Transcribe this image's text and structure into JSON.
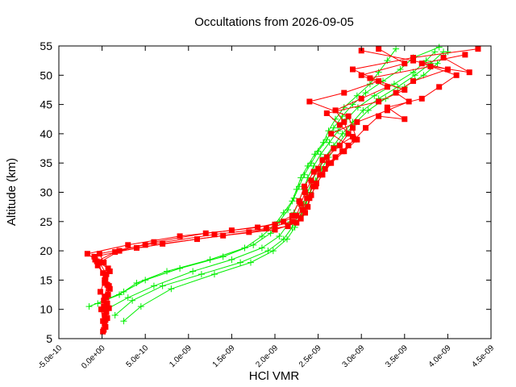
{
  "chart_data": {
    "type": "scatter",
    "title": "Occultations from 2026-09-05",
    "xlabel": "HCl VMR",
    "ylabel": "Altitude (km)",
    "xlim": [
      -5e-10,
      4.5e-09
    ],
    "ylim": [
      5,
      55
    ],
    "xticks": [
      {
        "value": -5e-10,
        "label": "-5.0e-10"
      },
      {
        "value": 0,
        "label": "0.0e+00"
      },
      {
        "value": 5e-10,
        "label": "5.0e-10"
      },
      {
        "value": 1e-09,
        "label": "1.0e-09"
      },
      {
        "value": 1.5e-09,
        "label": "1.5e-09"
      },
      {
        "value": 2e-09,
        "label": "2.0e-09"
      },
      {
        "value": 2.5e-09,
        "label": "2.5e-09"
      },
      {
        "value": 3e-09,
        "label": "3.0e-09"
      },
      {
        "value": 3.5e-09,
        "label": "3.5e-09"
      },
      {
        "value": 4e-09,
        "label": "4.0e-09"
      },
      {
        "value": 4.5e-09,
        "label": "4.5e-09"
      }
    ],
    "yticks": [
      {
        "value": 5,
        "label": "5"
      },
      {
        "value": 10,
        "label": "10"
      },
      {
        "value": 15,
        "label": "15"
      },
      {
        "value": 20,
        "label": "20"
      },
      {
        "value": 25,
        "label": "25"
      },
      {
        "value": 30,
        "label": "30"
      },
      {
        "value": 35,
        "label": "35"
      },
      {
        "value": 40,
        "label": "40"
      },
      {
        "value": 45,
        "label": "45"
      },
      {
        "value": 50,
        "label": "50"
      },
      {
        "value": 55,
        "label": "55"
      }
    ],
    "grid": false,
    "legend": "none",
    "series": [
      {
        "color": "#00ee00",
        "marker": "plus",
        "profiles": [
          [
            [
              -1.5e-10,
              10.5
            ],
            [
              2e-10,
              12.5
            ],
            [
              4e-10,
              14.5
            ],
            [
              7.5e-10,
              16.5
            ],
            [
              1.25e-09,
              18.5
            ],
            [
              1.65e-09,
              20.5
            ],
            [
              1.85e-09,
              22.5
            ],
            [
              2e-09,
              24.5
            ],
            [
              2.1e-09,
              26.5
            ],
            [
              2.2e-09,
              28.5
            ],
            [
              2.25e-09,
              30.5
            ],
            [
              2.3e-09,
              32.5
            ],
            [
              2.38e-09,
              34.5
            ],
            [
              2.46e-09,
              36.5
            ],
            [
              2.56e-09,
              38.5
            ],
            [
              2.62e-09,
              40.5
            ],
            [
              2.7e-09,
              42.5
            ],
            [
              2.8e-09,
              44.5
            ],
            [
              2.95e-09,
              46.5
            ],
            [
              3.1e-09,
              48.5
            ],
            [
              3.2e-09,
              50.5
            ],
            [
              3.3e-09,
              52.5
            ],
            [
              3.4e-09,
              54.5
            ]
          ],
          [
            [
              -5e-11,
              11
            ],
            [
              2.5e-10,
              13
            ],
            [
              5e-10,
              15
            ],
            [
              9e-10,
              17
            ],
            [
              1.4e-09,
              19
            ],
            [
              1.75e-09,
              21
            ],
            [
              1.95e-09,
              23
            ],
            [
              2.05e-09,
              25
            ],
            [
              2.15e-09,
              27
            ],
            [
              2.22e-09,
              29
            ],
            [
              2.28e-09,
              31
            ],
            [
              2.34e-09,
              33
            ],
            [
              2.42e-09,
              35
            ],
            [
              2.5e-09,
              37
            ],
            [
              2.6e-09,
              39
            ],
            [
              2.68e-09,
              41
            ],
            [
              2.78e-09,
              43
            ],
            [
              2.9e-09,
              45
            ],
            [
              3.05e-09,
              47
            ],
            [
              3.25e-09,
              49
            ],
            [
              3.45e-09,
              51
            ],
            [
              3.6e-09,
              53
            ],
            [
              3.9e-09,
              54.8
            ]
          ],
          [
            [
              5e-11,
              10
            ],
            [
              3e-10,
              12
            ],
            [
              6e-10,
              14
            ],
            [
              1.05e-09,
              16.5
            ],
            [
              1.5e-09,
              18.5
            ],
            [
              1.85e-09,
              20.5
            ],
            [
              2.05e-09,
              22.5
            ],
            [
              2.15e-09,
              24.5
            ],
            [
              2.22e-09,
              26.5
            ],
            [
              2.28e-09,
              28.5
            ],
            [
              2.33e-09,
              30.5
            ],
            [
              2.38e-09,
              32.5
            ],
            [
              2.45e-09,
              34.5
            ],
            [
              2.53e-09,
              36.5
            ],
            [
              2.63e-09,
              38.5
            ],
            [
              2.73e-09,
              40.5
            ],
            [
              2.83e-09,
              42.5
            ],
            [
              2.96e-09,
              44.5
            ],
            [
              3.15e-09,
              46.5
            ],
            [
              3.38e-09,
              48.5
            ],
            [
              3.6e-09,
              50.5
            ],
            [
              3.75e-09,
              52.5
            ],
            [
              3.85e-09,
              54
            ]
          ],
          [
            [
              1.5e-10,
              9
            ],
            [
              3.5e-10,
              11.5
            ],
            [
              7e-10,
              14
            ],
            [
              1.15e-09,
              16
            ],
            [
              1.6e-09,
              18
            ],
            [
              1.92e-09,
              20
            ],
            [
              2.1e-09,
              22
            ],
            [
              2.2e-09,
              24
            ],
            [
              2.27e-09,
              26
            ],
            [
              2.33e-09,
              28
            ],
            [
              2.38e-09,
              30
            ],
            [
              2.43e-09,
              32
            ],
            [
              2.5e-09,
              34
            ],
            [
              2.58e-09,
              36
            ],
            [
              2.68e-09,
              38
            ],
            [
              2.78e-09,
              40
            ],
            [
              2.9e-09,
              42
            ],
            [
              3.02e-09,
              44
            ],
            [
              3.2e-09,
              46
            ],
            [
              3.42e-09,
              48
            ],
            [
              3.62e-09,
              50
            ],
            [
              3.8e-09,
              52
            ],
            [
              3.95e-09,
              54
            ]
          ],
          [
            [
              2.5e-10,
              8
            ],
            [
              4.5e-10,
              10.5
            ],
            [
              8e-10,
              13.5
            ],
            [
              1.3e-09,
              16
            ],
            [
              1.72e-09,
              18
            ],
            [
              1.98e-09,
              20
            ],
            [
              2.14e-09,
              22
            ],
            [
              2.23e-09,
              24
            ],
            [
              2.3e-09,
              26
            ],
            [
              2.36e-09,
              28
            ],
            [
              2.41e-09,
              30
            ],
            [
              2.47e-09,
              32
            ],
            [
              2.54e-09,
              34
            ],
            [
              2.62e-09,
              36
            ],
            [
              2.72e-09,
              38
            ],
            [
              2.82e-09,
              40
            ],
            [
              2.94e-09,
              42
            ],
            [
              3.08e-09,
              44
            ],
            [
              3.28e-09,
              46
            ],
            [
              3.5e-09,
              48
            ],
            [
              3.72e-09,
              50
            ],
            [
              3.88e-09,
              52
            ],
            [
              4e-09,
              54
            ]
          ]
        ]
      },
      {
        "color": "#ff0000",
        "marker": "square",
        "profiles": [
          [
            [
              2e-11,
              6.5
            ],
            [
              1e-11,
              8
            ],
            [
              -1e-11,
              10
            ],
            [
              5e-11,
              12
            ],
            [
              8e-11,
              14
            ],
            [
              5e-11,
              16
            ],
            [
              -3e-11,
              18
            ],
            [
              2e-10,
              20
            ],
            [
              6e-10,
              21.5
            ],
            [
              1.2e-09,
              23
            ],
            [
              1.8e-09,
              24
            ],
            [
              2.1e-09,
              25
            ],
            [
              2.25e-09,
              26
            ],
            [
              2.3e-09,
              28
            ],
            [
              2.35e-09,
              30
            ],
            [
              2.42e-09,
              32
            ],
            [
              2.5e-09,
              34
            ],
            [
              2.6e-09,
              36
            ],
            [
              2.75e-09,
              38
            ],
            [
              2.85e-09,
              40
            ],
            [
              2.8e-09,
              42
            ],
            [
              2.7e-09,
              44
            ],
            [
              3e-09,
              46
            ],
            [
              3.3e-09,
              48
            ],
            [
              3e-09,
              50
            ],
            [
              3.5e-09,
              52
            ],
            [
              3.2e-09,
              54.5
            ]
          ],
          [
            [
              4e-11,
              7
            ],
            [
              3e-11,
              9
            ],
            [
              6e-11,
              11
            ],
            [
              -2e-11,
              13
            ],
            [
              3e-11,
              15
            ],
            [
              7e-11,
              17
            ],
            [
              -8e-11,
              18.5
            ],
            [
              -1.7e-10,
              19.5
            ],
            [
              3e-10,
              21
            ],
            [
              9e-10,
              22.5
            ],
            [
              1.5e-09,
              23.5
            ],
            [
              2e-09,
              24.5
            ],
            [
              2.2e-09,
              26
            ],
            [
              2.28e-09,
              28.5
            ],
            [
              2.34e-09,
              31
            ],
            [
              2.45e-09,
              33.5
            ],
            [
              2.55e-09,
              35.5
            ],
            [
              2.68e-09,
              37.5
            ],
            [
              2.9e-09,
              39.5
            ],
            [
              2.75e-09,
              41.5
            ],
            [
              2.6e-09,
              43.5
            ],
            [
              3.2e-09,
              45.5
            ],
            [
              3.5e-09,
              47.5
            ],
            [
              3.1e-09,
              49.5
            ],
            [
              3.8e-09,
              51.5
            ],
            [
              4.25e-09,
              50.5
            ],
            [
              3.95e-09,
              53
            ]
          ],
          [
            [
              3e-11,
              7.5
            ],
            [
              5e-11,
              9.5
            ],
            [
              2e-11,
              11.5
            ],
            [
              9e-11,
              13.5
            ],
            [
              4e-11,
              15.5
            ],
            [
              -5e-11,
              17.5
            ],
            [
              -9e-11,
              19
            ],
            [
              4e-10,
              20.5
            ],
            [
              1.1e-09,
              22
            ],
            [
              1.7e-09,
              23.2
            ],
            [
              2.15e-09,
              24.2
            ],
            [
              2.3e-09,
              25.5
            ],
            [
              2.38e-09,
              27.5
            ],
            [
              2.42e-09,
              29.5
            ],
            [
              2.48e-09,
              31.5
            ],
            [
              2.55e-09,
              33
            ],
            [
              2.65e-09,
              35
            ],
            [
              2.8e-09,
              37
            ],
            [
              2.95e-09,
              39
            ],
            [
              2.9e-09,
              41
            ],
            [
              2.85e-09,
              43
            ],
            [
              2.4e-09,
              45.5
            ],
            [
              2.8e-09,
              47
            ],
            [
              3.2e-09,
              49
            ],
            [
              2.9e-09,
              51
            ],
            [
              3.6e-09,
              53
            ],
            [
              4.35e-09,
              54.5
            ]
          ],
          [
            [
              6e-11,
              8.5
            ],
            [
              2e-11,
              10.5
            ],
            [
              7e-11,
              12.5
            ],
            [
              3e-11,
              14.5
            ],
            [
              9e-11,
              16.5
            ],
            [
              2e-11,
              18
            ],
            [
              -3e-11,
              19.5
            ],
            [
              5e-10,
              21
            ],
            [
              1.3e-09,
              22.8
            ],
            [
              1.9e-09,
              23.8
            ],
            [
              2.2e-09,
              25
            ],
            [
              2.35e-09,
              26.5
            ],
            [
              2.4e-09,
              29
            ],
            [
              2.47e-09,
              31
            ],
            [
              2.58e-09,
              34
            ],
            [
              2.7e-09,
              36
            ],
            [
              2.85e-09,
              38
            ],
            [
              2.65e-09,
              40
            ],
            [
              2.95e-09,
              42
            ],
            [
              3.3e-09,
              44
            ],
            [
              3.55e-09,
              45.5
            ],
            [
              3.4e-09,
              47
            ],
            [
              3.6e-09,
              49
            ],
            [
              4e-09,
              51
            ],
            [
              3.6e-09,
              52.5
            ],
            [
              3e-09,
              54.2
            ]
          ],
          [
            [
              1e-11,
              6.2
            ],
            [
              4e-11,
              8.2
            ],
            [
              8e-11,
              10.2
            ],
            [
              3e-11,
              12.2
            ],
            [
              6e-11,
              14.2
            ],
            [
              1e-11,
              16.2
            ],
            [
              -6e-11,
              18.2
            ],
            [
              1.5e-10,
              19.8
            ],
            [
              7e-10,
              21.2
            ],
            [
              1.4e-09,
              22.6
            ],
            [
              2e-09,
              23.6
            ],
            [
              2.25e-09,
              24.8
            ],
            [
              2.32e-09,
              27
            ],
            [
              2.37e-09,
              29
            ],
            [
              2.44e-09,
              31
            ],
            [
              2.52e-09,
              33
            ],
            [
              2.62e-09,
              35
            ],
            [
              2.78e-09,
              37
            ],
            [
              2.92e-09,
              39
            ],
            [
              3.05e-09,
              41
            ],
            [
              3.2e-09,
              43
            ],
            [
              3.5e-09,
              42.5
            ],
            [
              3.3e-09,
              44.5
            ],
            [
              3.7e-09,
              46
            ],
            [
              3.9e-09,
              48
            ],
            [
              4.1e-09,
              50
            ],
            [
              3.7e-09,
              52
            ],
            [
              4.2e-09,
              53.5
            ]
          ]
        ]
      }
    ]
  }
}
